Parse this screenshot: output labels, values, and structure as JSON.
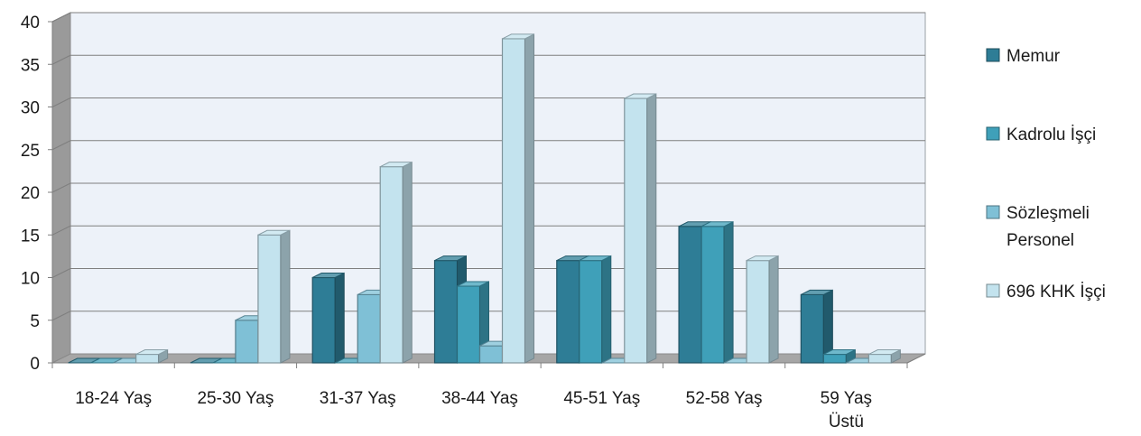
{
  "chart_data": {
    "type": "bar",
    "title": "",
    "xlabel": "",
    "ylabel": "",
    "ylim": [
      0,
      40
    ],
    "yticks": [
      0,
      5,
      10,
      15,
      20,
      25,
      30,
      35,
      40
    ],
    "grid": true,
    "three_d": true,
    "legend_position": "right",
    "categories": [
      [
        "18-24 Yaş"
      ],
      [
        "25-30 Yaş"
      ],
      [
        "31-37 Yaş"
      ],
      [
        "38-44 Yaş"
      ],
      [
        "45-51 Yaş"
      ],
      [
        "52-58 Yaş"
      ],
      [
        "59 Yaş",
        "Üstü"
      ]
    ],
    "series": [
      {
        "name": "Memur",
        "name_lines": [
          "Memur"
        ],
        "color": "#2e7d96",
        "values": [
          0,
          0,
          10,
          12,
          12,
          16,
          8
        ]
      },
      {
        "name": "Kadrolu İşçi",
        "name_lines": [
          "Kadrolu İşçi"
        ],
        "color": "#3fa0b9",
        "values": [
          0,
          0,
          0,
          9,
          12,
          16,
          1
        ]
      },
      {
        "name": "Sözleşmeli Personel",
        "name_lines": [
          "Sözleşmeli",
          "Personel"
        ],
        "color": "#7fc0d6",
        "values": [
          0,
          5,
          8,
          2,
          0,
          0,
          0
        ]
      },
      {
        "name": "696 KHK İşçi",
        "name_lines": [
          "696 KHK İşçi"
        ],
        "color": "#c3e3ee",
        "values": [
          1,
          15,
          23,
          38,
          31,
          12,
          1
        ]
      }
    ]
  }
}
